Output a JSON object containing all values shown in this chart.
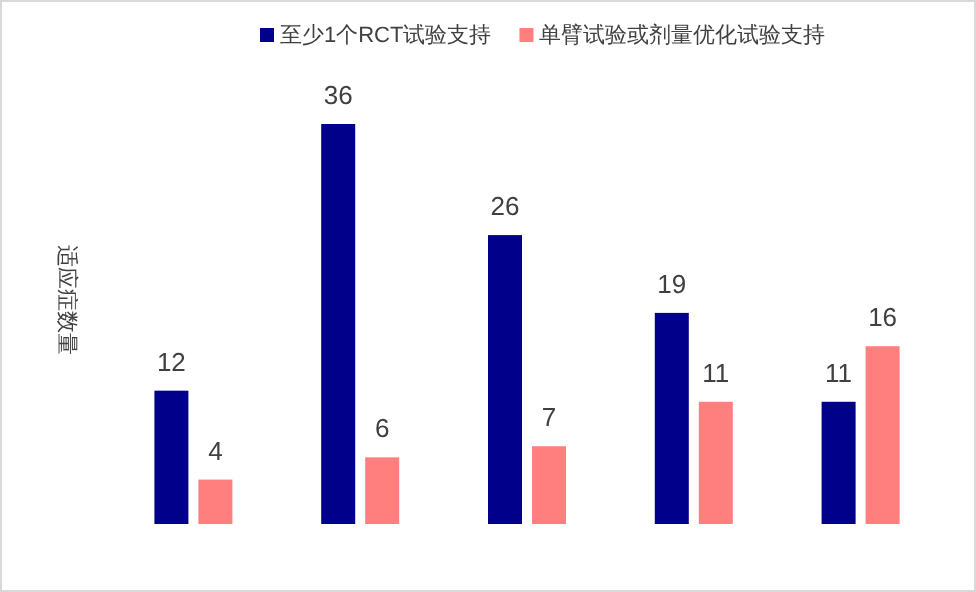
{
  "chart_data": {
    "type": "bar",
    "ylabel": "适应症数量",
    "categories": [
      null,
      null,
      null,
      null,
      null
    ],
    "series": [
      {
        "name": "至少1个RCT试验支持",
        "color": "#00008b",
        "values": [
          12,
          36,
          26,
          19,
          11
        ]
      },
      {
        "name": "单臂试验或剂量优化试验支持",
        "color": "#ff7f7f",
        "values": [
          4,
          6,
          7,
          11,
          16
        ]
      }
    ],
    "data_labels": true,
    "legend": "top"
  }
}
